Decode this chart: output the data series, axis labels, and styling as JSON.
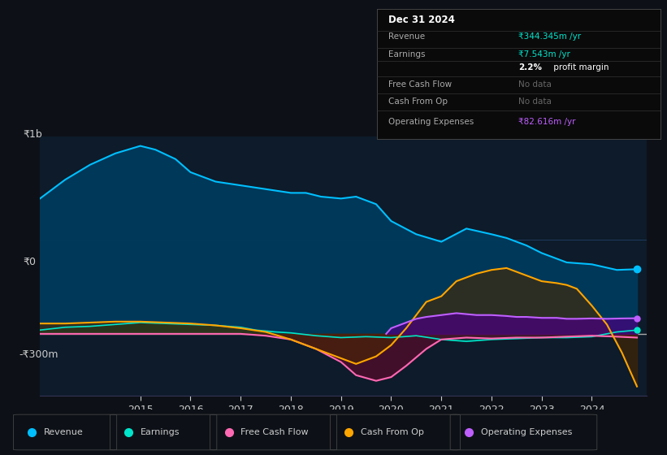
{
  "bg_color": "#0d1117",
  "plot_bg_color": "#0d1b2a",
  "grid_color": "#1e3a5f",
  "text_color": "#cccccc",
  "title_color": "#ffffff",
  "y1b_label": "₹1b",
  "y_neg_label": "-₹300m",
  "y0_label": "₹0",
  "legend_items": [
    {
      "label": "Revenue",
      "color": "#00bfff"
    },
    {
      "label": "Earnings",
      "color": "#00e5cc"
    },
    {
      "label": "Free Cash Flow",
      "color": "#ff69b4"
    },
    {
      "label": "Cash From Op",
      "color": "#ffa500"
    },
    {
      "label": "Operating Expenses",
      "color": "#bf5fff"
    }
  ],
  "revenue": {
    "x": [
      2013.0,
      2013.5,
      2014.0,
      2014.5,
      2015.0,
      2015.3,
      2015.7,
      2016.0,
      2016.5,
      2017.0,
      2017.5,
      2018.0,
      2018.3,
      2018.6,
      2019.0,
      2019.3,
      2019.7,
      2020.0,
      2020.5,
      2021.0,
      2021.5,
      2022.0,
      2022.3,
      2022.7,
      2023.0,
      2023.5,
      2024.0,
      2024.5,
      2024.9
    ],
    "y": [
      720,
      820,
      900,
      960,
      1000,
      980,
      930,
      860,
      810,
      790,
      770,
      750,
      750,
      730,
      720,
      730,
      690,
      600,
      530,
      490,
      560,
      530,
      510,
      470,
      430,
      380,
      370,
      340,
      344
    ],
    "color": "#00bfff",
    "fill_color": "#003a5c"
  },
  "earnings": {
    "x": [
      2013.0,
      2013.5,
      2014.0,
      2014.5,
      2015.0,
      2015.5,
      2016.0,
      2016.5,
      2017.0,
      2017.3,
      2017.7,
      2018.0,
      2018.5,
      2019.0,
      2019.5,
      2020.0,
      2020.5,
      2021.0,
      2021.5,
      2022.0,
      2022.5,
      2023.0,
      2023.5,
      2024.0,
      2024.5,
      2024.9
    ],
    "y": [
      20,
      35,
      40,
      50,
      60,
      55,
      50,
      45,
      35,
      20,
      10,
      5,
      -10,
      -20,
      -15,
      -20,
      -10,
      -30,
      -40,
      -30,
      -25,
      -20,
      -20,
      -15,
      10,
      20
    ],
    "color": "#00e5cc",
    "fill_color": "#004d40"
  },
  "free_cash_flow": {
    "x": [
      2013.0,
      2014.0,
      2015.0,
      2016.0,
      2017.0,
      2017.5,
      2018.0,
      2018.5,
      2019.0,
      2019.3,
      2019.7,
      2020.0,
      2020.3,
      2020.7,
      2021.0,
      2021.5,
      2022.0,
      2022.5,
      2023.0,
      2023.5,
      2024.0,
      2024.5,
      2024.9
    ],
    "y": [
      0,
      0,
      0,
      0,
      0,
      -10,
      -30,
      -80,
      -150,
      -220,
      -250,
      -230,
      -170,
      -80,
      -30,
      -20,
      -25,
      -20,
      -20,
      -15,
      -10,
      -15,
      -20
    ],
    "color": "#ff69b4",
    "fill_color": "#5a0a2a"
  },
  "cash_from_op": {
    "x": [
      2013.0,
      2013.5,
      2014.0,
      2014.5,
      2015.0,
      2015.5,
      2016.0,
      2016.5,
      2017.0,
      2017.5,
      2018.0,
      2018.5,
      2019.0,
      2019.3,
      2019.7,
      2020.0,
      2020.3,
      2020.5,
      2020.7,
      2021.0,
      2021.3,
      2021.5,
      2021.7,
      2022.0,
      2022.3,
      2022.5,
      2022.7,
      2023.0,
      2023.3,
      2023.5,
      2023.7,
      2024.0,
      2024.3,
      2024.6,
      2024.9
    ],
    "y": [
      55,
      55,
      60,
      65,
      65,
      60,
      55,
      45,
      30,
      10,
      -30,
      -80,
      -130,
      -160,
      -120,
      -60,
      30,
      100,
      170,
      200,
      280,
      300,
      320,
      340,
      350,
      330,
      310,
      280,
      270,
      260,
      240,
      150,
      50,
      -100,
      -280
    ],
    "color": "#ffa500",
    "fill_color": "#4a2800"
  },
  "op_expenses": {
    "x": [
      2019.9,
      2020.0,
      2020.3,
      2020.5,
      2020.7,
      2021.0,
      2021.3,
      2021.5,
      2021.7,
      2022.0,
      2022.3,
      2022.5,
      2022.7,
      2023.0,
      2023.3,
      2023.5,
      2023.7,
      2024.0,
      2024.3,
      2024.6,
      2024.9
    ],
    "y": [
      0,
      30,
      60,
      80,
      90,
      100,
      110,
      105,
      100,
      100,
      95,
      90,
      90,
      85,
      85,
      80,
      80,
      82,
      80,
      82,
      83
    ],
    "color": "#bf5fff",
    "fill_color": "#4a0080"
  }
}
